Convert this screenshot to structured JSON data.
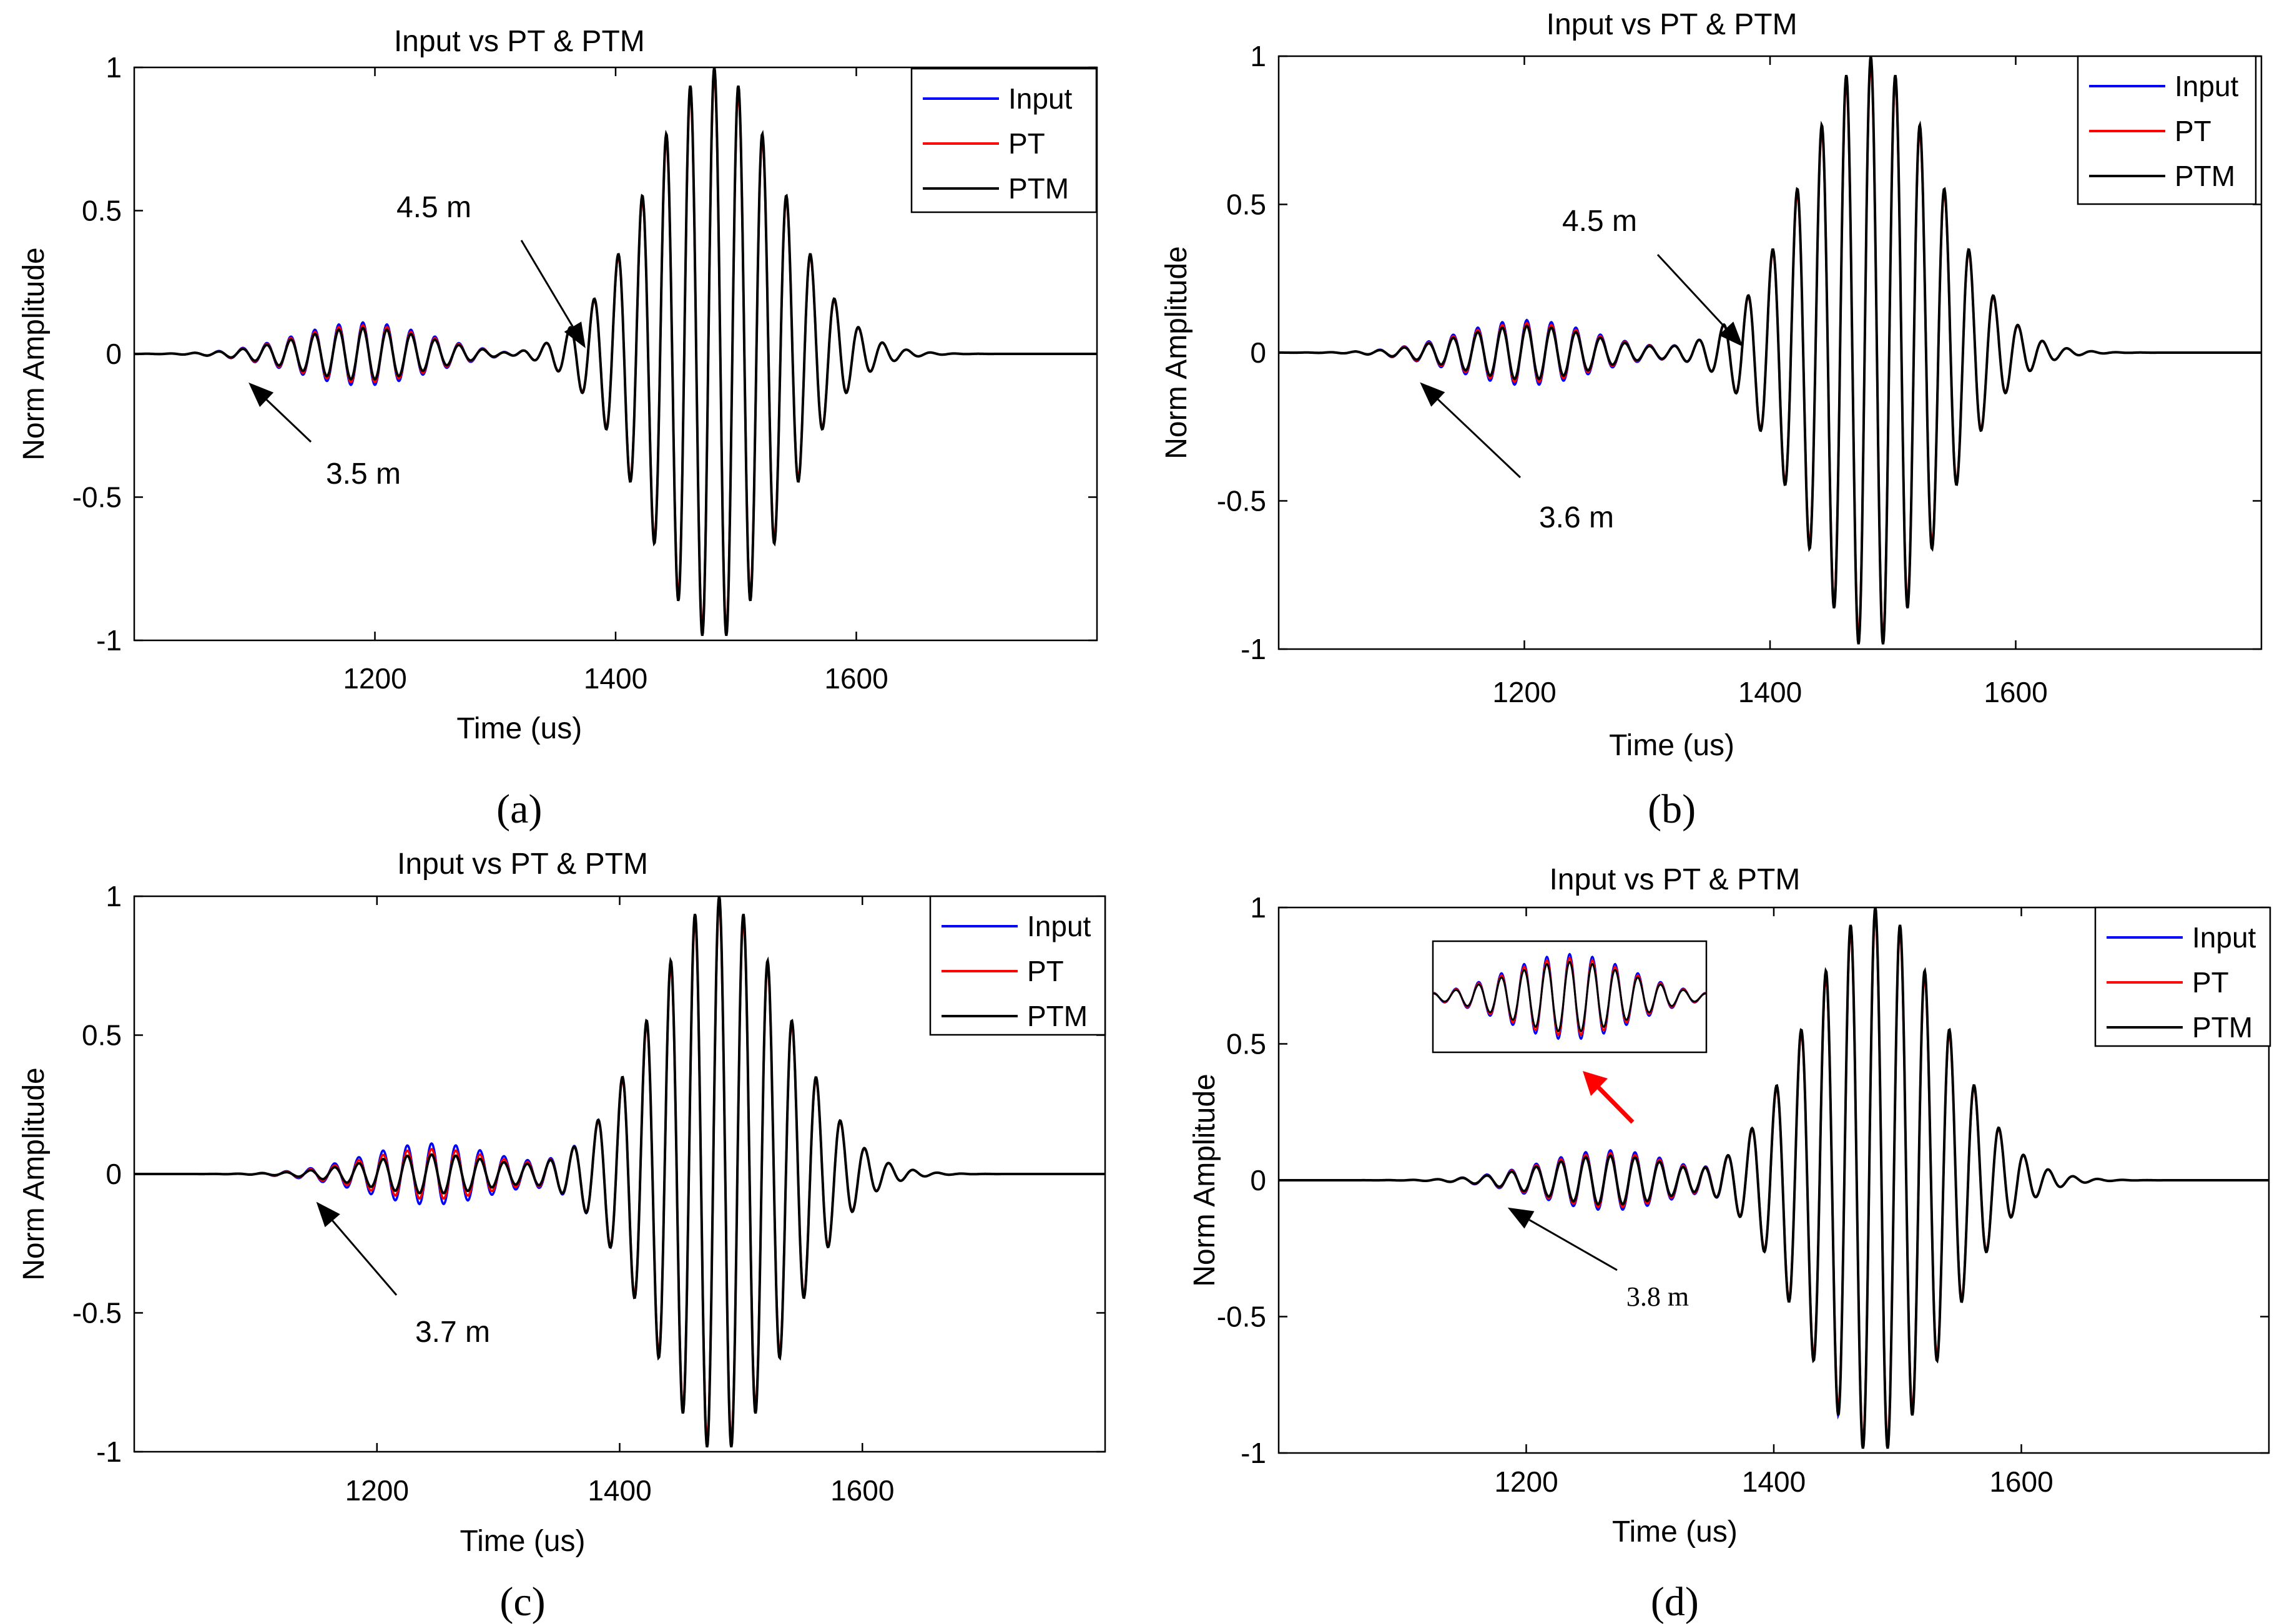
{
  "chart_data": [
    {
      "type": "line",
      "panel_label": "(a)",
      "title": "Input vs PT & PTM",
      "xlabel": "Time (us)",
      "ylabel": "Norm Amplitude",
      "xlim": [
        1000,
        1800
      ],
      "ylim": [
        -1,
        1
      ],
      "xticks": [
        "1200",
        "1400",
        "1600"
      ],
      "yticks": [
        "-1",
        "-0.5",
        "0",
        "0.5",
        "1"
      ],
      "legend": {
        "location": "top-right",
        "entries": [
          "Input",
          "PT",
          "PTM"
        ]
      },
      "colors": {
        "Input": "#0000ff",
        "PT": "#ff0000",
        "PTM": "#000000"
      },
      "small_packet": {
        "center": 1190,
        "width": 55,
        "freq_khz": 50,
        "amps": {
          "Input": 0.11,
          "PT": 0.1,
          "PTM": 0.09
        }
      },
      "main_packet": {
        "center": 1482,
        "width": 55,
        "freq_khz": 50,
        "amps": {
          "Input": 1.0,
          "PT": 0.985,
          "PTM": 1.0
        }
      },
      "annotations": [
        {
          "text": "4.5 m",
          "points_to": [
            1375,
            0.02
          ]
        },
        {
          "text": "3.5 m",
          "points_to": [
            1095,
            -0.1
          ]
        }
      ]
    },
    {
      "type": "line",
      "panel_label": "(b)",
      "title": "Input vs PT & PTM",
      "xlabel": "Time (us)",
      "ylabel": "Norm Amplitude",
      "xlim": [
        1000,
        1800
      ],
      "ylim": [
        -1,
        1
      ],
      "xticks": [
        "1200",
        "1400",
        "1600"
      ],
      "yticks": [
        "-1",
        "-0.5",
        "0",
        "0.5",
        "1"
      ],
      "legend": {
        "location": "top-right",
        "entries": [
          "Input",
          "PT",
          "PTM"
        ]
      },
      "colors": {
        "Input": "#0000ff",
        "PT": "#ff0000",
        "PTM": "#000000"
      },
      "small_packet": {
        "center": 1202,
        "width": 55,
        "freq_khz": 50,
        "amps": {
          "Input": 0.11,
          "PT": 0.1,
          "PTM": 0.09
        }
      },
      "main_packet": {
        "center": 1482,
        "width": 55,
        "freq_khz": 50,
        "amps": {
          "Input": 1.0,
          "PT": 0.985,
          "PTM": 1.0
        }
      },
      "annotations": [
        {
          "text": "4.5 m",
          "points_to": [
            1378,
            0.02
          ]
        },
        {
          "text": "3.6 m",
          "points_to": [
            1115,
            -0.1
          ]
        }
      ]
    },
    {
      "type": "line",
      "panel_label": "(c)",
      "title": "Input vs PT & PTM",
      "xlabel": "Time (us)",
      "ylabel": "Norm Amplitude",
      "xlim": [
        1000,
        1800
      ],
      "ylim": [
        -1,
        1
      ],
      "xticks": [
        "1200",
        "1400",
        "1600"
      ],
      "yticks": [
        "-1",
        "-0.5",
        "0",
        "0.5",
        "1"
      ],
      "legend": {
        "location": "top-right",
        "entries": [
          "Input",
          "PT",
          "PTM"
        ]
      },
      "colors": {
        "Input": "#0000ff",
        "PT": "#ff0000",
        "PTM": "#000000"
      },
      "small_packet": {
        "center": 1245,
        "width": 55,
        "freq_khz": 50,
        "amps": {
          "Input": 0.11,
          "PT": 0.09,
          "PTM": 0.07
        }
      },
      "main_packet": {
        "center": 1482,
        "width": 55,
        "freq_khz": 50,
        "amps": {
          "Input": 1.0,
          "PT": 0.985,
          "PTM": 1.0
        }
      },
      "annotations": [
        {
          "text": "3.7 m",
          "points_to": [
            1150,
            -0.1
          ]
        }
      ]
    },
    {
      "type": "line",
      "panel_label": "(d)",
      "title": "Input vs PT & PTM",
      "xlabel": "Time (us)",
      "ylabel": "Norm Amplitude",
      "xlim": [
        1000,
        1800
      ],
      "ylim": [
        -1,
        1
      ],
      "xticks": [
        "1200",
        "1400",
        "1600"
      ],
      "yticks": [
        "-1",
        "-0.5",
        "0",
        "0.5",
        "1"
      ],
      "legend": {
        "location": "top-right",
        "entries": [
          "Input",
          "PT",
          "PTM"
        ]
      },
      "colors": {
        "Input": "#0000ff",
        "PT": "#ff0000",
        "PTM": "#000000"
      },
      "small_packet": {
        "center": 1268,
        "width": 55,
        "freq_khz": 50,
        "amps": {
          "Input": 0.11,
          "PT": 0.1,
          "PTM": 0.09
        }
      },
      "main_packet": {
        "center": 1482,
        "width": 55,
        "freq_khz": 50,
        "amps": {
          "Input": 1.0,
          "PT": 0.985,
          "PTM": 1.0
        }
      },
      "annotations": [
        {
          "text": "3.8 m",
          "points_to": [
            1185,
            -0.1
          ]
        }
      ],
      "inset": {
        "shows": "zoom of small packet",
        "arrow_color": "#ff0000"
      }
    }
  ]
}
